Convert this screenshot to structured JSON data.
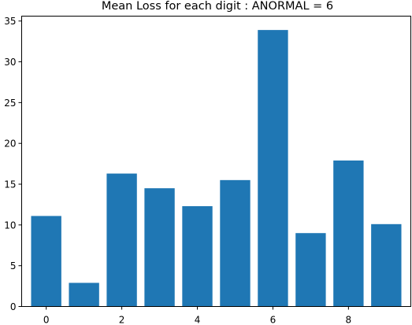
{
  "chart_data": {
    "type": "bar",
    "title": "Mean Loss for each digit : ANORMAL = 6",
    "xlabel": "",
    "ylabel": "",
    "categories": [
      0,
      1,
      2,
      3,
      4,
      5,
      6,
      7,
      8,
      9
    ],
    "values": [
      11.1,
      2.9,
      16.3,
      14.5,
      12.3,
      15.5,
      33.9,
      9.0,
      17.9,
      10.1
    ],
    "xticks": [
      0,
      2,
      4,
      6,
      8
    ],
    "yticks": [
      0,
      5,
      10,
      15,
      20,
      25,
      30,
      35
    ],
    "ylim": [
      0,
      35.6
    ],
    "xlim": [
      -0.65,
      9.65
    ],
    "bar_color": "#1f77b4",
    "grid": false,
    "legend": "none"
  }
}
